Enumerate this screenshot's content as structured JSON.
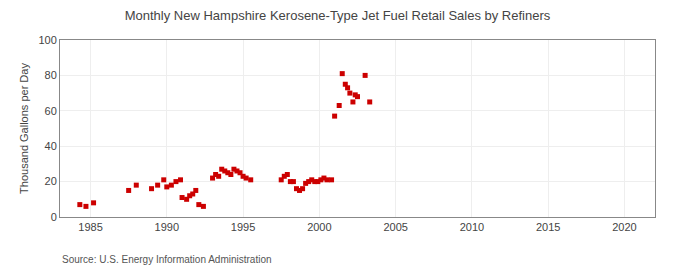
{
  "chart_data": {
    "type": "scatter",
    "title": "Monthly New Hampshire Kerosene-Type Jet Fuel Retail Sales by Refiners",
    "ylabel": "Thousand Gallons per Day",
    "annotations": [
      "Source: U.S. Energy Information Administration"
    ],
    "color": "#cc0000",
    "marker": "square",
    "x": [
      1984.3,
      1984.7,
      1985.2,
      1987.5,
      1988.0,
      1989.0,
      1989.4,
      1989.8,
      1990.0,
      1990.3,
      1990.6,
      1990.9,
      1991.0,
      1991.3,
      1991.5,
      1991.7,
      1991.9,
      1992.1,
      1992.4,
      1993.0,
      1993.2,
      1993.4,
      1993.6,
      1993.8,
      1994.0,
      1994.2,
      1994.4,
      1994.6,
      1994.8,
      1995.0,
      1995.2,
      1995.5,
      1997.5,
      1997.7,
      1997.9,
      1998.1,
      1998.3,
      1998.5,
      1998.7,
      1998.9,
      1999.1,
      1999.3,
      1999.5,
      1999.7,
      1999.9,
      2000.1,
      2000.3,
      2000.5,
      2001.0,
      2001.3,
      2001.5,
      2001.7,
      2001.85,
      2002.0,
      2002.2,
      2002.35,
      2002.5,
      2003.0,
      2003.3,
      2000.8
    ],
    "values": [
      7,
      6,
      8,
      15,
      18,
      16,
      18,
      21,
      17,
      18,
      20,
      21,
      11,
      10,
      12,
      13,
      15,
      7,
      6,
      22,
      24,
      23,
      27,
      26,
      25,
      24,
      27,
      26,
      25,
      23,
      22,
      21,
      21,
      23,
      24,
      20,
      20,
      16,
      15,
      16,
      19,
      20,
      21,
      20,
      20,
      21,
      22,
      21,
      57,
      63,
      81,
      75,
      73,
      70,
      65,
      69,
      68,
      80,
      65,
      21
    ],
    "xlim": [
      1983,
      2022
    ],
    "xticks": [
      1985,
      1990,
      1995,
      2000,
      2005,
      2010,
      2015,
      2020
    ],
    "ylim": [
      0,
      100
    ],
    "yticks": [
      0,
      20,
      40,
      60,
      80,
      100
    ],
    "grid": true
  }
}
